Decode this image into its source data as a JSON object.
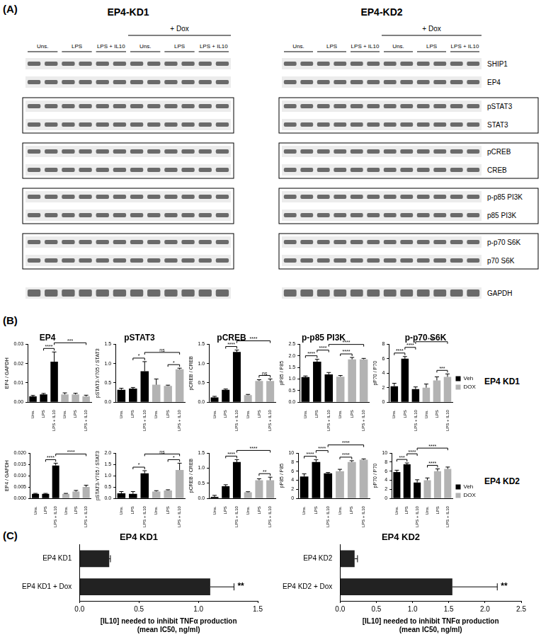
{
  "panel_labels": [
    "(A)",
    "(B)",
    "(C)"
  ],
  "blot": {
    "titles": [
      "EP4-KD1",
      "EP4-KD2"
    ],
    "treatment_label": "+ Dox",
    "lanes": [
      "Uns.",
      "LPS",
      "LPS + IL10",
      "Uns.",
      "LPS",
      "LPS + IL10"
    ],
    "proteins": [
      "SHIP1",
      "EP4",
      "pSTAT3",
      "STAT3",
      "pCREB",
      "CREB",
      "p-p85 PI3K",
      "p85 PI3K",
      "p-p70 S6K",
      "p70 S6K",
      "GAPDH"
    ]
  },
  "row_labels": [
    "EP4 KD1",
    "EP4 KD2"
  ],
  "chart_data": [
    {
      "type": "bar",
      "title": "EP4",
      "ylabel": "EP4 / GAPDH",
      "categories": [
        "Uns.",
        "LPS",
        "LPS + IL10",
        "Uns.",
        "LPS",
        "LPS + IL10"
      ],
      "series": [
        {
          "name": "Veh",
          "color": "#000000",
          "values": [
            0.003,
            0.004,
            0.021,
            null,
            null,
            null
          ],
          "errors": [
            0.0005,
            0.0005,
            0.005,
            null,
            null,
            null
          ]
        },
        {
          "name": "DOX",
          "color": "#b3b3b3",
          "values": [
            null,
            null,
            null,
            0.004,
            0.004,
            0.003
          ],
          "errors": [
            null,
            null,
            null,
            0.0008,
            0.0006,
            0.0006
          ]
        }
      ],
      "ylim": [
        0,
        0.03
      ],
      "yticks": [
        {
          "value": 0,
          "label": "0.00"
        },
        {
          "value": 0.01,
          "label": "0.01"
        },
        {
          "value": 0.02,
          "label": "0.02"
        },
        {
          "value": 0.03,
          "label": "0.03"
        }
      ],
      "grid": false,
      "annotations": [
        {
          "text": "****",
          "pair": [
            1,
            2
          ]
        },
        {
          "text": "***",
          "pair": [
            2,
            5
          ]
        }
      ]
    },
    {
      "type": "bar",
      "title": "pSTAT3",
      "ylabel": "pSTAT3-Y705 / STAT3",
      "categories": [
        "Uns.",
        "LPS",
        "LPS + IL10",
        "Uns.",
        "LPS",
        "LPS + IL10"
      ],
      "series": [
        {
          "name": "Veh",
          "color": "#000000",
          "values": [
            0.32,
            0.35,
            0.8,
            null,
            null,
            null
          ],
          "errors": [
            0.04,
            0.03,
            0.25,
            null,
            null,
            null
          ]
        },
        {
          "name": "DOX",
          "color": "#b3b3b3",
          "values": [
            null,
            null,
            null,
            0.45,
            0.42,
            0.85
          ],
          "errors": [
            null,
            null,
            null,
            0.15,
            0.02,
            0.03
          ]
        }
      ],
      "ylim": [
        0,
        1.5
      ],
      "yticks": [
        {
          "value": 0,
          "label": "0.0"
        },
        {
          "value": 0.5,
          "label": "0.5"
        },
        {
          "value": 1,
          "label": "1.0"
        },
        {
          "value": 1.5,
          "label": "1.5"
        }
      ],
      "grid": false,
      "annotations": [
        {
          "text": "*",
          "pair": [
            1,
            2
          ]
        },
        {
          "text": "*",
          "pair": [
            4,
            5
          ]
        },
        {
          "text": "ns",
          "pair": [
            2,
            5
          ]
        }
      ]
    },
    {
      "type": "bar",
      "title": "pCREB",
      "ylabel": "pCREB / CREB",
      "categories": [
        "Uns.",
        "LPS",
        "LPS + IL10",
        "Uns.",
        "LPS",
        "LPS + IL10"
      ],
      "series": [
        {
          "name": "Veh",
          "color": "#000000",
          "values": [
            0.12,
            0.32,
            1.3,
            null,
            null,
            null
          ],
          "errors": [
            0.03,
            0.02,
            0.05,
            null,
            null,
            null
          ]
        },
        {
          "name": "DOX",
          "color": "#b3b3b3",
          "values": [
            null,
            null,
            null,
            0.18,
            0.55,
            0.55
          ],
          "errors": [
            null,
            null,
            null,
            0.02,
            0.03,
            0.05
          ]
        }
      ],
      "ylim": [
        0,
        1.5
      ],
      "yticks": [
        {
          "value": 0,
          "label": "0.0"
        },
        {
          "value": 0.5,
          "label": "0.5"
        },
        {
          "value": 1,
          "label": "1.0"
        },
        {
          "value": 1.5,
          "label": "1.5"
        }
      ],
      "grid": false,
      "annotations": [
        {
          "text": "****",
          "pair": [
            1,
            2
          ]
        },
        {
          "text": "ns",
          "pair": [
            4,
            5
          ]
        },
        {
          "text": "****",
          "pair": [
            2,
            5
          ]
        }
      ]
    },
    {
      "type": "bar",
      "title": "p-p85 PI3K",
      "ylabel": "pP85 / P85",
      "categories": [
        "Uns.",
        "LPS",
        "LPS + IL10",
        "Uns.",
        "LPS",
        "LPS + IL10"
      ],
      "series": [
        {
          "name": "Veh",
          "color": "#000000",
          "values": [
            1.08,
            1.75,
            1.2,
            null,
            null,
            null
          ],
          "errors": [
            0.05,
            0.1,
            0.08,
            null,
            null,
            null
          ]
        },
        {
          "name": "DOX",
          "color": "#b3b3b3",
          "values": [
            null,
            null,
            null,
            1.1,
            1.85,
            1.85
          ],
          "errors": [
            null,
            null,
            null,
            0.05,
            0.08,
            0.04
          ]
        }
      ],
      "ylim": [
        0,
        2.5
      ],
      "yticks": [
        {
          "value": 0,
          "label": "0.0"
        },
        {
          "value": 0.5,
          "label": "0.5"
        },
        {
          "value": 1,
          "label": "1.0"
        },
        {
          "value": 1.5,
          "label": "1.5"
        },
        {
          "value": 2,
          "label": "2.0"
        },
        {
          "value": 2.5,
          "label": "2.5"
        }
      ],
      "grid": false,
      "annotations": [
        {
          "text": "****",
          "pair": [
            0,
            1
          ]
        },
        {
          "text": "****",
          "pair": [
            1,
            2
          ]
        },
        {
          "text": "****",
          "pair": [
            3,
            4
          ]
        },
        {
          "text": "****",
          "pair": [
            2,
            5
          ]
        }
      ]
    },
    {
      "type": "bar",
      "title": "p-p70 S6K",
      "ylabel": "pP70 / P70",
      "categories": [
        "Uns.",
        "LPS",
        "LPS + IL10",
        "Uns.",
        "LPS",
        "LPS + IL10"
      ],
      "series": [
        {
          "name": "Veh",
          "color": "#000000",
          "values": [
            2.2,
            6.0,
            1.8,
            null,
            null,
            null
          ],
          "errors": [
            0.4,
            0.3,
            0.3,
            null,
            null,
            null
          ]
        },
        {
          "name": "DOX",
          "color": "#b3b3b3",
          "values": [
            null,
            null,
            null,
            2.0,
            3.0,
            3.5
          ],
          "errors": [
            null,
            null,
            null,
            0.5,
            0.5,
            0.4
          ]
        }
      ],
      "ylim": [
        0,
        8
      ],
      "yticks": [
        0,
        2,
        4,
        6,
        8
      ],
      "grid": false,
      "legend": "right",
      "annotations": [
        {
          "text": "****",
          "pair": [
            0,
            1
          ]
        },
        {
          "text": "****",
          "pair": [
            1,
            2
          ]
        },
        {
          "text": "***",
          "pair": [
            4,
            5
          ]
        },
        {
          "text": "****",
          "pair": [
            2,
            5
          ]
        }
      ]
    },
    {
      "type": "bar",
      "ylabel": "EP4 / GAPDH",
      "categories": [
        "Uns.",
        "LPS",
        "LPS + IL10",
        "Uns.",
        "LPS",
        "LPS + IL10"
      ],
      "series": [
        {
          "name": "Veh",
          "color": "#000000",
          "values": [
            0.002,
            0.002,
            0.0145,
            null,
            null,
            null
          ],
          "errors": [
            0.0002,
            0.0002,
            0.001,
            null,
            null,
            null
          ]
        },
        {
          "name": "DOX",
          "color": "#b3b3b3",
          "values": [
            null,
            null,
            null,
            0.002,
            0.003,
            0.005
          ],
          "errors": [
            null,
            null,
            null,
            0.0002,
            0.0005,
            0.0008
          ]
        }
      ],
      "ylim": [
        0,
        0.02
      ],
      "yticks": [
        {
          "value": 0,
          "label": "0.000"
        },
        {
          "value": 0.005,
          "label": "0.005"
        },
        {
          "value": 0.01,
          "label": "0.010"
        },
        {
          "value": 0.015,
          "label": "0.015"
        },
        {
          "value": 0.02,
          "label": "0.020"
        }
      ],
      "grid": false,
      "annotations": [
        {
          "text": "****",
          "pair": [
            1,
            2
          ]
        },
        {
          "text": "****",
          "pair": [
            2,
            5
          ]
        }
      ]
    },
    {
      "type": "bar",
      "ylabel": "pSTAT3-Y705 / STAT3",
      "categories": [
        "Uns.",
        "LPS",
        "LPS + IL10",
        "Uns.",
        "LPS",
        "LPS + IL10"
      ],
      "series": [
        {
          "name": "Veh",
          "color": "#000000",
          "values": [
            0.22,
            0.2,
            1.1,
            null,
            null,
            null
          ],
          "errors": [
            0.08,
            0.1,
            0.12,
            null,
            null,
            null
          ]
        },
        {
          "name": "DOX",
          "color": "#b3b3b3",
          "values": [
            null,
            null,
            null,
            0.3,
            0.35,
            1.25
          ],
          "errors": [
            null,
            null,
            null,
            0.04,
            0.03,
            0.3
          ]
        }
      ],
      "ylim": [
        0,
        2
      ],
      "yticks": [
        {
          "value": 0,
          "label": "0.0"
        },
        {
          "value": 0.5,
          "label": "0.5"
        },
        {
          "value": 1,
          "label": "1.0"
        },
        {
          "value": 1.5,
          "label": "1.5"
        },
        {
          "value": 2,
          "label": "2.0"
        }
      ],
      "grid": false,
      "annotations": [
        {
          "text": "*",
          "pair": [
            1,
            2
          ]
        },
        {
          "text": "*",
          "pair": [
            4,
            5
          ]
        },
        {
          "text": "ns",
          "pair": [
            2,
            5
          ]
        }
      ]
    },
    {
      "type": "bar",
      "ylabel": "pCREB / CREB",
      "categories": [
        "Uns.",
        "LPS",
        "LPS + IL10",
        "Uns.",
        "LPS",
        "LPS + IL10"
      ],
      "series": [
        {
          "name": "Veh",
          "color": "#000000",
          "values": [
            0.05,
            0.4,
            1.2,
            null,
            null,
            null
          ],
          "errors": [
            0.05,
            0.05,
            0.08,
            null,
            null,
            null
          ]
        },
        {
          "name": "DOX",
          "color": "#b3b3b3",
          "values": [
            null,
            null,
            null,
            0.2,
            0.6,
            0.6
          ],
          "errors": [
            null,
            null,
            null,
            0.02,
            0.05,
            0.1
          ]
        }
      ],
      "ylim": [
        0,
        1.5
      ],
      "yticks": [
        {
          "value": 0,
          "label": "0.0"
        },
        {
          "value": 0.5,
          "label": "0.5"
        },
        {
          "value": 1,
          "label": "1.0"
        },
        {
          "value": 1.5,
          "label": "1.5"
        }
      ],
      "grid": false,
      "annotations": [
        {
          "text": "****",
          "pair": [
            1,
            2
          ]
        },
        {
          "text": "**",
          "pair": [
            4,
            5
          ]
        },
        {
          "text": "****",
          "pair": [
            2,
            5
          ]
        }
      ]
    },
    {
      "type": "bar",
      "ylabel": "pP85 / P85",
      "categories": [
        "Uns.",
        "LPS",
        "LPS + IL10",
        "Uns.",
        "LPS",
        "LPS + IL10"
      ],
      "series": [
        {
          "name": "Veh",
          "color": "#000000",
          "values": [
            4.8,
            8.0,
            5.5,
            null,
            null,
            null
          ],
          "errors": [
            0.6,
            0.5,
            0.2,
            null,
            null,
            null
          ]
        },
        {
          "name": "DOX",
          "color": "#b3b3b3",
          "values": [
            null,
            null,
            null,
            6.0,
            8.0,
            8.5
          ],
          "errors": [
            null,
            null,
            null,
            0.4,
            0.3,
            0.2
          ]
        }
      ],
      "ylim": [
        0,
        10
      ],
      "yticks": [
        0,
        2,
        4,
        6,
        8,
        10
      ],
      "grid": false,
      "annotations": [
        {
          "text": "****",
          "pair": [
            0,
            1
          ]
        },
        {
          "text": "****",
          "pair": [
            1,
            2
          ]
        },
        {
          "text": "****",
          "pair": [
            3,
            4
          ]
        },
        {
          "text": "****",
          "pair": [
            2,
            5
          ]
        }
      ]
    },
    {
      "type": "bar",
      "ylabel": "pP70 / P70",
      "categories": [
        "Uns.",
        "LPS",
        "LPS + IL10",
        "Uns.",
        "LPS",
        "LPS + IL10"
      ],
      "series": [
        {
          "name": "Veh",
          "color": "#000000",
          "values": [
            5.8,
            7.5,
            3.5,
            null,
            null,
            null
          ],
          "errors": [
            0.4,
            0.3,
            0.6,
            null,
            null,
            null
          ]
        },
        {
          "name": "DOX",
          "color": "#b3b3b3",
          "values": [
            null,
            null,
            null,
            4.0,
            6.0,
            6.5
          ],
          "errors": [
            null,
            null,
            null,
            0.5,
            0.5,
            0.4
          ]
        }
      ],
      "ylim": [
        0,
        10
      ],
      "yticks": [
        0,
        2,
        4,
        6,
        8,
        10
      ],
      "grid": false,
      "legend": "right",
      "annotations": [
        {
          "text": "***",
          "pair": [
            0,
            1
          ]
        },
        {
          "text": "****",
          "pair": [
            1,
            2
          ]
        },
        {
          "text": "****",
          "pair": [
            3,
            4
          ]
        },
        {
          "text": "****",
          "pair": [
            2,
            5
          ]
        }
      ]
    },
    {
      "type": "bar",
      "orientation": "horizontal",
      "title": "EP4 KD1",
      "xlabel": "[IL10] needed to inhibit TNFα production\n(mean IC50, ng/ml)",
      "categories": [
        "EP4 KD1",
        "EP4 KD1 + Dox"
      ],
      "values": [
        0.25,
        1.1
      ],
      "errors": [
        0.01,
        0.2
      ],
      "color": "#222222",
      "xlim": [
        0,
        1.5
      ],
      "xticks": [
        {
          "value": 0,
          "label": "0.0"
        },
        {
          "value": 0.5,
          "label": "0.5"
        },
        {
          "value": 1,
          "label": "1.0"
        },
        {
          "value": 1.5,
          "label": "1.5"
        }
      ],
      "grid": false,
      "annotations": [
        {
          "text": "**",
          "index": 1
        }
      ]
    },
    {
      "type": "bar",
      "orientation": "horizontal",
      "title": "EP4 KD2",
      "xlabel": "[IL10] needed to inhibit TNFα production\n(mean IC50, ng/ml)",
      "categories": [
        "EP4 KD2",
        "EP4 KD2 + Dox"
      ],
      "values": [
        0.2,
        1.55
      ],
      "errors": [
        0.04,
        0.62
      ],
      "color": "#222222",
      "xlim": [
        0,
        2.5
      ],
      "xticks": [
        {
          "value": 0,
          "label": "0.0"
        },
        {
          "value": 0.5,
          "label": "0.5"
        },
        {
          "value": 1,
          "label": "1.0"
        },
        {
          "value": 1.5,
          "label": "1.5"
        },
        {
          "value": 2,
          "label": "2.0"
        },
        {
          "value": 2.5,
          "label": "2.5"
        }
      ],
      "grid": false,
      "annotations": [
        {
          "text": "**",
          "index": 1
        }
      ]
    }
  ]
}
